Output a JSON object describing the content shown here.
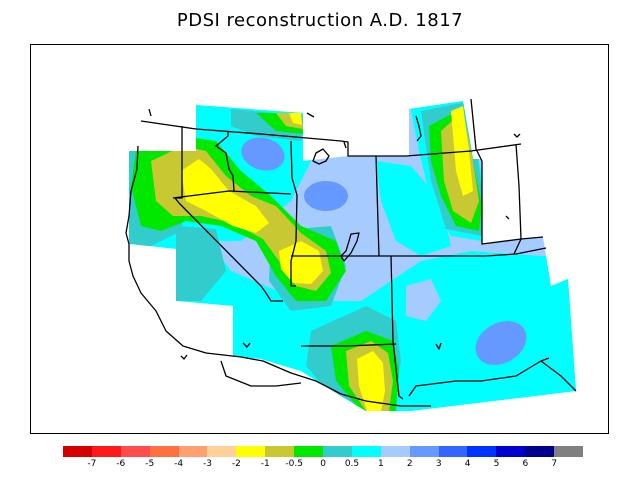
{
  "title": "PDSI reconstruction A.D. 1817",
  "colors": {
    "c_m7": "#d40000",
    "c_m6": "#ff1a1a",
    "c_m5": "#ff4d4d",
    "c_m4": "#ff7040",
    "c_m3": "#ffa070",
    "c_m2": "#ffd09a",
    "c_m1": "#ffff00",
    "c_m05": "#c8c832",
    "c_0": "#00e800",
    "c_05": "#33cccc",
    "c_1": "#00ffff",
    "c_2": "#a6ccff",
    "c_3": "#6699ff",
    "c_4": "#3366ff",
    "c_5": "#0033ff",
    "c_6": "#0000cc",
    "c_7": "#00008a",
    "c_end": "#808080",
    "boundary": "#000000"
  },
  "colorbar": {
    "swatches": [
      "#d40000",
      "#ff1a1a",
      "#ff4d4d",
      "#ff7040",
      "#ffa070",
      "#ffd09a",
      "#ffff00",
      "#c8c832",
      "#00e800",
      "#33cccc",
      "#00ffff",
      "#a6ccff",
      "#6699ff",
      "#3366ff",
      "#0033ff",
      "#0000cc",
      "#00008a",
      "#808080"
    ],
    "labels": [
      "-7",
      "-6",
      "-5",
      "-4",
      "-3",
      "-2",
      "-1",
      "-0.5",
      "0",
      "0.5",
      "1",
      "2",
      "3",
      "4",
      "5",
      "6",
      "7"
    ]
  }
}
